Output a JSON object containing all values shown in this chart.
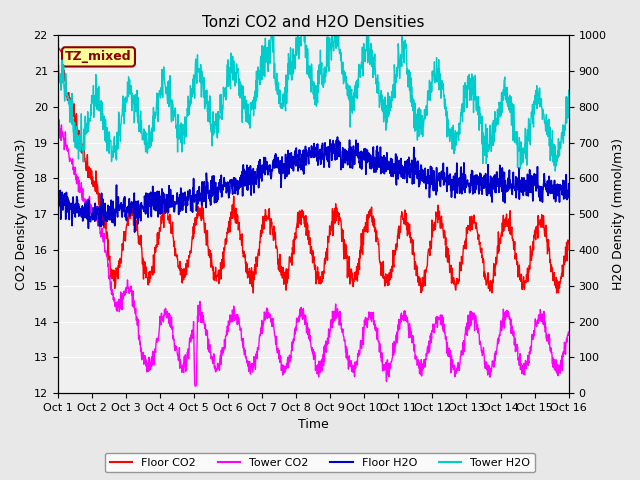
{
  "title": "Tonzi CO2 and H2O Densities",
  "xlabel": "Time",
  "ylabel_left": "CO2 Density (mmol/m3)",
  "ylabel_right": "H2O Density (mmol/m3)",
  "ylim_left": [
    12.0,
    22.0
  ],
  "ylim_right": [
    0,
    1000
  ],
  "yticks_left": [
    12.0,
    13.0,
    14.0,
    15.0,
    16.0,
    17.0,
    18.0,
    19.0,
    20.0,
    21.0,
    22.0
  ],
  "yticks_right": [
    0,
    100,
    200,
    300,
    400,
    500,
    600,
    700,
    800,
    900,
    1000
  ],
  "xtick_labels": [
    "Oct 1",
    "Oct 2",
    "Oct 3",
    "Oct 4",
    "Oct 5",
    "Oct 6",
    "Oct 7",
    "Oct 8",
    "Oct 9",
    "Oct 10",
    "Oct 11",
    "Oct 12",
    "Oct 13",
    "Oct 14",
    "Oct 15",
    "Oct 16"
  ],
  "annotation_text": "TZ_mixed",
  "annotation_color": "#8B0000",
  "annotation_bg": "#FFFF99",
  "annotation_border": "#8B0000",
  "line_colors": {
    "floor_co2": "#FF0000",
    "tower_co2": "#FF00FF",
    "floor_h2o": "#0000CC",
    "tower_h2o": "#00CCCC"
  },
  "legend_labels": [
    "Floor CO2",
    "Tower CO2",
    "Floor H2O",
    "Tower H2O"
  ],
  "bg_color": "#E8E8E8",
  "plot_bg_color": "#F0F0F0",
  "grid_color": "#FFFFFF",
  "n_days": 15,
  "pts_per_day": 96
}
